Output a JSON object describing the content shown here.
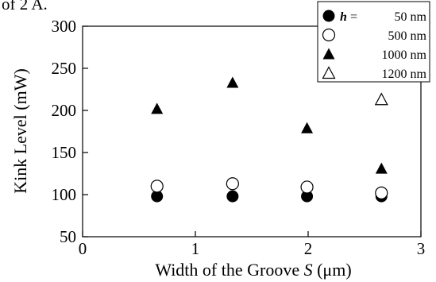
{
  "header_fragment": "of 2 A.",
  "chart_data": {
    "type": "scatter",
    "xlabel": "Width of the Groove",
    "xlabel_var": "S",
    "xlabel_unit": "(μm)",
    "ylabel": "Kink Level (mW)",
    "xlim": [
      0,
      3
    ],
    "ylim": [
      50,
      300
    ],
    "x_ticks": [
      0,
      1,
      2,
      3
    ],
    "x_tick_labels": [
      "0",
      "1",
      "2",
      "3"
    ],
    "y_ticks": [
      50,
      100,
      150,
      200,
      250,
      300
    ],
    "y_tick_labels": [
      "50",
      "100",
      "150",
      "200",
      "250",
      "300"
    ],
    "legend_position": "top-right",
    "legend_var": "h",
    "legend_eq": "=",
    "series": [
      {
        "name": "50 nm",
        "marker": "filled-circle",
        "x": [
          0.66,
          1.33,
          1.99,
          2.65
        ],
        "y": [
          98,
          98,
          98,
          98
        ]
      },
      {
        "name": "500 nm",
        "marker": "open-circle",
        "x": [
          0.66,
          1.33,
          1.99,
          2.65
        ],
        "y": [
          110,
          113,
          109,
          102
        ]
      },
      {
        "name": "1000 nm",
        "marker": "filled-triangle",
        "x": [
          0.66,
          1.33,
          1.99,
          2.65
        ],
        "y": [
          202,
          233,
          179,
          131
        ]
      },
      {
        "name": "1200 nm",
        "marker": "open-triangle",
        "x": [
          2.65
        ],
        "y": [
          213
        ]
      }
    ]
  }
}
